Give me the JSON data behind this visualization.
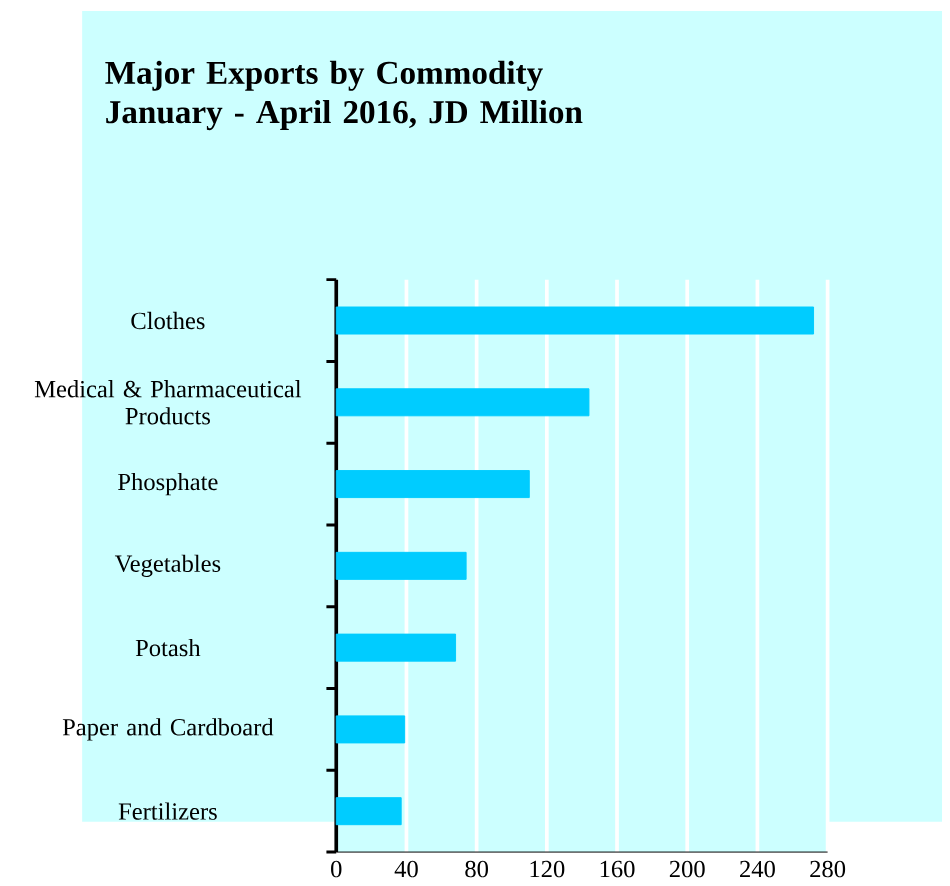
{
  "chart_data": {
    "type": "bar",
    "orientation": "horizontal",
    "title": "Major Exports by Commodity\nJanuary - April 2016,  JD Million",
    "categories": [
      "Clothes",
      "Medical & Pharmaceutical\nProducts",
      "Phosphate",
      "Vegetables",
      "Potash",
      "Paper and Cardboard",
      "Fertilizers"
    ],
    "values": [
      272,
      144,
      110,
      74,
      68,
      39,
      37
    ],
    "color": "#00ccff",
    "xlim": [
      0,
      280
    ],
    "xticks": [
      0,
      40,
      80,
      120,
      160,
      200,
      240,
      280
    ],
    "grid": "x"
  }
}
